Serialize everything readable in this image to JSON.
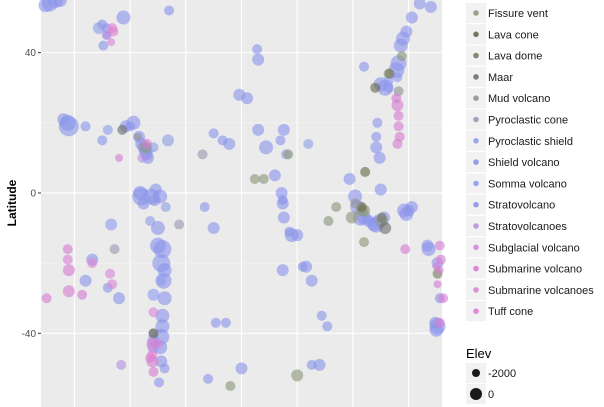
{
  "chart_data": {
    "type": "scatter",
    "ylabel": "Latitude",
    "y_ticks": [
      40,
      0,
      -40
    ],
    "ylim": [
      -61,
      55
    ],
    "xlim": [
      -180,
      180
    ],
    "x_gridlines": [
      -150,
      -100,
      -50,
      0,
      50,
      100,
      150
    ],
    "grid": true,
    "background": "#ebebeb",
    "legend_type": {
      "placement": "right",
      "items": [
        {
          "label": "Fissure vent",
          "color": "#8d9a7a"
        },
        {
          "label": "Lava cone",
          "color": "#6a6a4f"
        },
        {
          "label": "Lava dome",
          "color": "#7a7a66"
        },
        {
          "label": "Maar",
          "color": "#6f6f6f"
        },
        {
          "label": "Mud volcano",
          "color": "#939393"
        },
        {
          "label": "Pyroclastic cone",
          "color": "#9c9ab2"
        },
        {
          "label": "Pyroclastic shield",
          "color": "#8fa0e6"
        },
        {
          "label": "Shield volcano",
          "color": "#8a96e8"
        },
        {
          "label": "Somma volcano",
          "color": "#8f9cf0"
        },
        {
          "label": "Stratovolcano",
          "color": "#8c95ec"
        },
        {
          "label": "Stratovolcanoes",
          "color": "#b892e0"
        },
        {
          "label": "Subglacial volcano",
          "color": "#d889d8"
        },
        {
          "label": "Submarine volcano",
          "color": "#d67ed2"
        },
        {
          "label": "Submarine volcanoes",
          "color": "#dd85d6"
        },
        {
          "label": "Tuff cone",
          "color": "#e07fcf"
        }
      ]
    },
    "legend_size": {
      "title": "Elev",
      "items": [
        {
          "label": "-2000",
          "size": 4
        },
        {
          "label": "0",
          "size": 6
        }
      ]
    },
    "series": [
      {
        "type": "Stratovolcano",
        "points": [
          [
            -176,
            53.5,
            7
          ],
          [
            -172,
            54,
            8
          ],
          [
            -167,
            55,
            8
          ],
          [
            -163,
            55,
            7
          ],
          [
            -65,
            52,
            5
          ],
          [
            -106,
            50,
            7
          ],
          [
            -125,
            48,
            5
          ],
          [
            -121,
            47,
            5
          ],
          [
            -121,
            45,
            4
          ],
          [
            -124,
            42,
            5
          ],
          [
            110,
            36,
            5
          ],
          [
            125,
            31,
            7
          ],
          [
            129,
            30,
            8
          ],
          [
            132,
            30,
            5
          ],
          [
            139,
            35,
            8
          ],
          [
            141,
            37,
            8
          ],
          [
            143,
            42,
            7
          ],
          [
            145,
            44,
            7
          ],
          [
            148,
            46,
            6
          ],
          [
            153,
            50,
            6
          ],
          [
            160,
            54,
            6
          ],
          [
            170,
            53,
            6
          ],
          [
            -97,
            20,
            7
          ],
          [
            -100,
            19,
            5
          ],
          [
            -104,
            19,
            6
          ],
          [
            -92,
            16,
            6
          ],
          [
            -90,
            14,
            6
          ],
          [
            -88,
            13,
            6
          ],
          [
            -86,
            12,
            7
          ],
          [
            -85,
            11,
            6
          ],
          [
            -84,
            10,
            6
          ],
          [
            -73,
            -1,
            7
          ],
          [
            -77,
            1,
            6
          ],
          [
            -78,
            -2,
            6
          ],
          [
            -75,
            -10,
            7
          ],
          [
            -75,
            -15,
            8
          ],
          [
            -71,
            -16,
            9
          ],
          [
            -72,
            -20,
            9
          ],
          [
            -69,
            -22,
            7
          ],
          [
            -70,
            -25,
            8
          ],
          [
            -69,
            -30,
            7
          ],
          [
            -71,
            -35,
            7
          ],
          [
            -71,
            -38,
            7
          ],
          [
            -72,
            -41,
            8
          ],
          [
            -73,
            -44,
            7
          ],
          [
            -72,
            -48,
            6
          ],
          [
            -69,
            -50,
            5
          ],
          [
            -74,
            -54,
            5
          ],
          [
            -23,
            -37,
            5
          ],
          [
            -30,
            -53,
            5
          ],
          [
            15,
            38,
            6
          ],
          [
            14,
            41,
            5
          ],
          [
            38,
            18,
            6
          ],
          [
            35,
            15,
            5
          ],
          [
            36,
            0,
            6
          ],
          [
            37,
            -2,
            5
          ],
          [
            37,
            -3,
            6
          ],
          [
            38,
            -7,
            6
          ],
          [
            30,
            5,
            6
          ],
          [
            50,
            -12,
            6
          ],
          [
            58,
            -21,
            6
          ],
          [
            97,
            4,
            6
          ],
          [
            102,
            -1,
            7
          ],
          [
            104,
            -4,
            7
          ],
          [
            107,
            -7,
            8
          ],
          [
            110,
            -7,
            7
          ],
          [
            114,
            -8,
            6
          ],
          [
            119,
            -9,
            7
          ],
          [
            121,
            -9,
            8
          ],
          [
            124,
            -8,
            7
          ],
          [
            128,
            -7,
            6
          ],
          [
            125,
            1,
            6
          ],
          [
            124,
            10,
            6
          ],
          [
            121,
            13,
            6
          ],
          [
            121,
            16,
            5
          ],
          [
            122,
            20,
            5
          ],
          [
            150,
            -5,
            6
          ],
          [
            146,
            -5,
            7
          ],
          [
            148,
            -6,
            7
          ],
          [
            153,
            -4,
            6
          ],
          [
            168,
            -16,
            7
          ],
          [
            167,
            -15,
            6
          ],
          [
            176,
            -20,
            6
          ],
          [
            175,
            -39,
            7
          ],
          [
            176,
            -38,
            8
          ],
          [
            174,
            -37,
            6
          ],
          [
            178,
            -30,
            5
          ],
          [
            -25,
            65,
            5
          ],
          [
            -20,
            64,
            5
          ],
          [
            37,
            -22,
            6
          ]
        ]
      },
      {
        "type": "Shield volcano",
        "points": [
          [
            -155,
            19,
            10
          ],
          [
            -156,
            20,
            8
          ],
          [
            -160,
            21,
            6
          ],
          [
            -140,
            19,
            5
          ],
          [
            -125,
            15,
            5
          ],
          [
            -134,
            -19,
            6
          ],
          [
            -140,
            -25,
            6
          ],
          [
            -120,
            -27,
            5
          ],
          [
            -110,
            -30,
            6
          ],
          [
            -81,
            -1,
            8
          ],
          [
            -90,
            -1,
            9
          ],
          [
            -91,
            0,
            7
          ],
          [
            -88,
            -3,
            6
          ],
          [
            -11,
            14,
            6
          ],
          [
            -17,
            15,
            5
          ],
          [
            -25,
            17,
            5
          ],
          [
            -25,
            -10,
            6
          ],
          [
            -33,
            -4,
            5
          ],
          [
            -14,
            -37,
            5
          ],
          [
            0,
            -50,
            6
          ],
          [
            55,
            -21,
            5
          ],
          [
            63,
            -25,
            6
          ],
          [
            72,
            -35,
            5
          ],
          [
            77,
            -38,
            5
          ],
          [
            70,
            -49,
            6
          ],
          [
            43,
            -11,
            5
          ],
          [
            45,
            -12,
            7
          ],
          [
            5,
            27,
            6
          ],
          [
            15,
            18,
            6
          ],
          [
            22,
            13,
            7
          ],
          [
            -2,
            28,
            6
          ],
          [
            63,
            -49,
            5
          ]
        ]
      },
      {
        "type": "Pyroclastic shield",
        "points": [
          [
            -128,
            47,
            6
          ],
          [
            -120,
            18,
            5
          ],
          [
            -79,
            13,
            5
          ],
          [
            -66,
            15,
            6
          ],
          [
            -68,
            -4,
            5
          ],
          [
            -82,
            -8,
            5
          ],
          [
            60,
            14,
            5
          ],
          [
            40,
            11,
            5
          ]
        ]
      },
      {
        "type": "Somma volcano",
        "points": [
          [
            -117,
            -9,
            6
          ],
          [
            -86,
            12,
            5
          ],
          [
            -72,
            -25,
            5
          ],
          [
            140,
            33,
            5
          ],
          [
            132,
            32,
            5
          ],
          [
            -79,
            -29,
            6
          ],
          [
            -79,
            -40,
            5
          ],
          [
            -79,
            -42,
            6
          ],
          [
            -79,
            -44,
            6
          ]
        ]
      },
      {
        "type": "Fissure vent",
        "points": [
          [
            -86,
            13,
            6
          ],
          [
            20,
            4,
            5
          ],
          [
            12,
            4,
            5
          ],
          [
            -20,
            64,
            5
          ],
          [
            42,
            11,
            5
          ],
          [
            -10,
            -55,
            5
          ],
          [
            78,
            -8,
            5
          ],
          [
            108,
            -5,
            6
          ],
          [
            99,
            -7,
            6
          ],
          [
            110,
            -5,
            6
          ],
          [
            126,
            -8,
            6
          ],
          [
            144,
            39,
            5
          ],
          [
            132,
            34,
            5
          ],
          [
            85,
            -4,
            5
          ],
          [
            110,
            -14,
            5
          ],
          [
            50,
            -52,
            6
          ]
        ]
      },
      {
        "type": "Lava cone",
        "points": [
          [
            -79,
            -40,
            5
          ],
          [
            120,
            30,
            5
          ],
          [
            111,
            6,
            5
          ],
          [
            108,
            -4,
            5
          ]
        ]
      },
      {
        "type": "Lava dome",
        "points": [
          [
            133,
            34,
            5
          ],
          [
            126,
            -7,
            5
          ],
          [
            176,
            -23,
            5
          ]
        ]
      },
      {
        "type": "Maar",
        "points": [
          [
            -107,
            18,
            5
          ],
          [
            129,
            -10,
            6
          ]
        ]
      },
      {
        "type": "Mud volcano",
        "points": [
          [
            -93,
            16,
            4
          ],
          [
            102,
            -3,
            5
          ],
          [
            141,
            29,
            5
          ]
        ]
      },
      {
        "type": "Pyroclastic cone",
        "points": [
          [
            -114,
            -16,
            5
          ],
          [
            -56,
            -9,
            5
          ],
          [
            -35,
            11,
            5
          ]
        ]
      },
      {
        "type": "Stratovolcanoes",
        "points": [
          [
            -121,
            45,
            5
          ],
          [
            -89,
            10,
            5
          ],
          [
            -108,
            -49,
            5
          ]
        ]
      },
      {
        "type": "Subglacial volcano",
        "points": [
          [
            -118,
            -23,
            5
          ],
          [
            -116,
            -26,
            5
          ],
          [
            -75,
            -43,
            5
          ],
          [
            -79,
            -34,
            5
          ]
        ]
      },
      {
        "type": "Submarine volcano",
        "points": [
          [
            -155,
            -22,
            6
          ],
          [
            -156,
            -16,
            5
          ],
          [
            -155,
            -28,
            6
          ],
          [
            -143,
            -29,
            5
          ],
          [
            -110,
            10,
            4
          ],
          [
            -85,
            14,
            5
          ],
          [
            -80,
            -43,
            6
          ],
          [
            -80,
            -48,
            6
          ],
          [
            -82,
            -47,
            5
          ],
          [
            -79,
            -51,
            5
          ],
          [
            139,
            27,
            5
          ],
          [
            140,
            25,
            6
          ],
          [
            141,
            22,
            5
          ],
          [
            141,
            19,
            5
          ],
          [
            142,
            16,
            5
          ],
          [
            140,
            14,
            5
          ],
          [
            147,
            -16,
            5
          ],
          [
            178,
            -15,
            5
          ],
          [
            179,
            -19,
            5
          ],
          [
            178,
            -37,
            5
          ],
          [
            181,
            -30,
            5
          ],
          [
            -175,
            -30,
            5
          ],
          [
            175,
            -21,
            4
          ],
          [
            178,
            -22,
            4
          ],
          [
            176,
            -26,
            4
          ]
        ]
      },
      {
        "type": "Submarine volcanoes",
        "points": [
          [
            -116,
            47,
            5
          ],
          [
            -117,
            43,
            4
          ],
          [
            -134,
            -20,
            5
          ],
          [
            -156,
            -19,
            5
          ]
        ]
      },
      {
        "type": "Tuff cone",
        "points": [
          [
            -115,
            46,
            5
          ],
          [
            -80,
            -46,
            5
          ]
        ]
      }
    ]
  }
}
